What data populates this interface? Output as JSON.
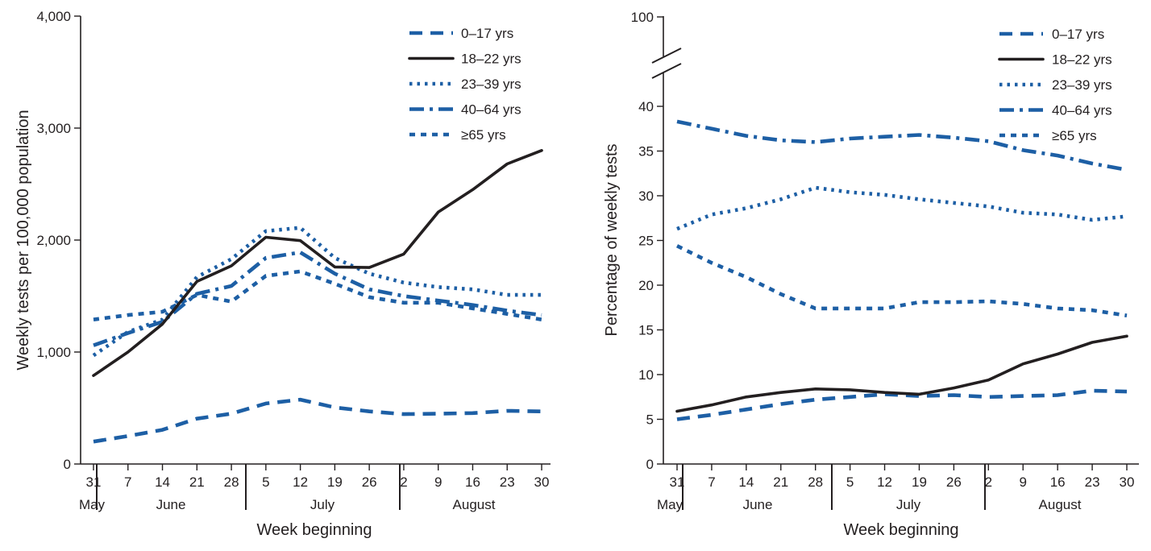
{
  "chart_data": [
    {
      "type": "line",
      "title": "",
      "xlabel": "Week beginning",
      "ylabel": "Weekly tests per 100,000 population",
      "ylim": [
        0,
        4000
      ],
      "yticks": [
        "0",
        "1,000",
        "2,000",
        "3,000",
        "4,000"
      ],
      "x_tick_labels": [
        "31",
        "7",
        "14",
        "21",
        "28",
        "5",
        "12",
        "19",
        "26",
        "2",
        "9",
        "16",
        "23",
        "30"
      ],
      "month_labels": [
        "May",
        "June",
        "July",
        "August"
      ],
      "legend_position": "top-right",
      "grid": false,
      "series": [
        {
          "name": "0–17 yrs",
          "style": "dashed",
          "color": "#1d5fa5",
          "values": [
            200,
            250,
            305,
            405,
            450,
            540,
            575,
            505,
            470,
            445,
            450,
            455,
            475,
            470
          ]
        },
        {
          "name": "18–22 yrs",
          "style": "solid",
          "color": "#231f20",
          "values": [
            790,
            1000,
            1250,
            1630,
            1770,
            2025,
            1995,
            1760,
            1755,
            1875,
            2250,
            2450,
            2680,
            2800
          ]
        },
        {
          "name": "23–39 yrs",
          "style": "dotted",
          "color": "#1d5fa5",
          "values": [
            970,
            1180,
            1290,
            1670,
            1830,
            2080,
            2110,
            1840,
            1700,
            1620,
            1580,
            1560,
            1510,
            1510
          ]
        },
        {
          "name": "40–64 yrs",
          "style": "dash-dot",
          "color": "#1d5fa5",
          "values": [
            1060,
            1170,
            1270,
            1520,
            1590,
            1840,
            1890,
            1700,
            1560,
            1500,
            1460,
            1420,
            1370,
            1330
          ]
        },
        {
          "name": "≥65 yrs",
          "style": "short-dash",
          "color": "#1d5fa5",
          "values": [
            1290,
            1330,
            1360,
            1510,
            1450,
            1680,
            1720,
            1610,
            1490,
            1440,
            1440,
            1390,
            1340,
            1290
          ]
        }
      ]
    },
    {
      "type": "line",
      "title": "",
      "xlabel": "Week beginning",
      "ylabel": "Percentage of weekly tests",
      "ylim": [
        0,
        100
      ],
      "y_axis_break": [
        40,
        100
      ],
      "yticks": [
        "0",
        "5",
        "10",
        "15",
        "20",
        "25",
        "30",
        "35",
        "40",
        "100"
      ],
      "x_tick_labels": [
        "31",
        "7",
        "14",
        "21",
        "28",
        "5",
        "12",
        "19",
        "26",
        "2",
        "9",
        "16",
        "23",
        "30"
      ],
      "month_labels": [
        "May",
        "June",
        "July",
        "August"
      ],
      "legend_position": "top-right",
      "grid": false,
      "series": [
        {
          "name": "0–17 yrs",
          "style": "dashed",
          "color": "#1d5fa5",
          "values": [
            5.0,
            5.5,
            6.1,
            6.7,
            7.2,
            7.5,
            7.8,
            7.6,
            7.7,
            7.5,
            7.6,
            7.7,
            8.2,
            8.1
          ]
        },
        {
          "name": "18–22 yrs",
          "style": "solid",
          "color": "#231f20",
          "values": [
            5.9,
            6.6,
            7.5,
            8.0,
            8.4,
            8.3,
            8.0,
            7.8,
            8.5,
            9.4,
            11.2,
            12.3,
            13.6,
            14.3
          ]
        },
        {
          "name": "23–39 yrs",
          "style": "dotted",
          "color": "#1d5fa5",
          "values": [
            26.3,
            27.9,
            28.6,
            29.6,
            30.9,
            30.4,
            30.1,
            29.6,
            29.2,
            28.8,
            28.1,
            27.9,
            27.3,
            27.7
          ]
        },
        {
          "name": "40–64 yrs",
          "style": "dash-dot",
          "color": "#1d5fa5",
          "values": [
            38.3,
            37.5,
            36.7,
            36.2,
            36.0,
            36.4,
            36.6,
            36.8,
            36.5,
            36.1,
            35.1,
            34.5,
            33.6,
            32.9
          ]
        },
        {
          "name": "≥65 yrs",
          "style": "short-dash",
          "color": "#1d5fa5",
          "values": [
            24.4,
            22.5,
            20.9,
            19.0,
            17.4,
            17.4,
            17.4,
            18.1,
            18.1,
            18.2,
            17.9,
            17.4,
            17.2,
            16.6
          ]
        }
      ]
    }
  ]
}
